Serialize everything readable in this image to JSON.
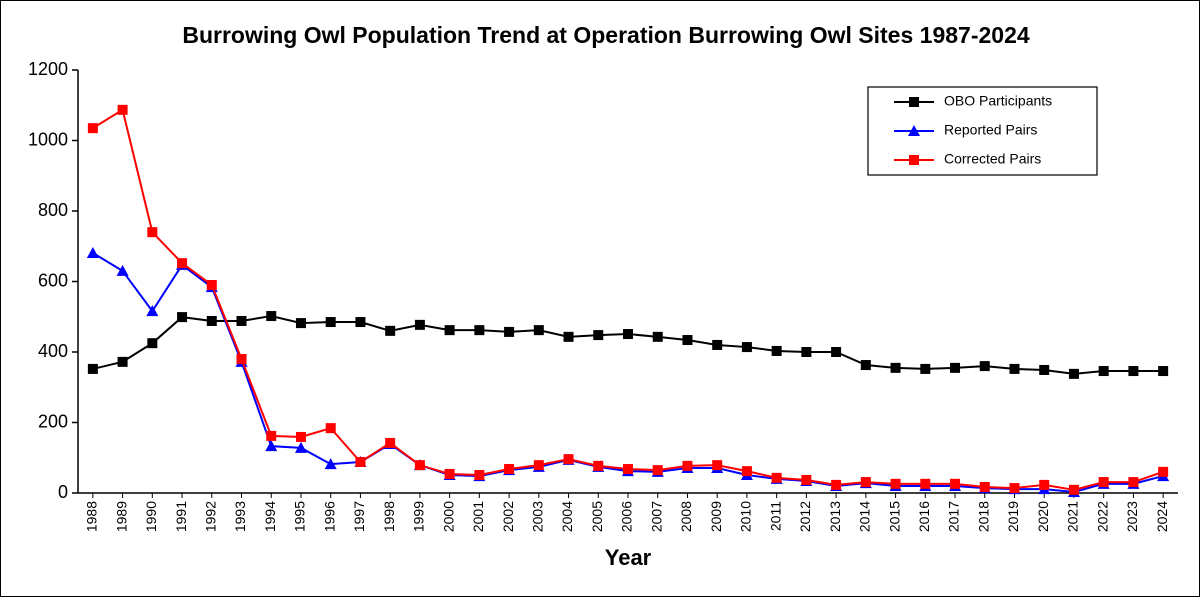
{
  "chart_data": {
    "type": "line",
    "title": "Burrowing Owl Population Trend at Operation Burrowing Owl Sites 1987-2024",
    "x_label": "Year",
    "x": [
      1988,
      1989,
      1990,
      1991,
      1992,
      1993,
      1994,
      1995,
      1996,
      1997,
      1998,
      1999,
      2000,
      2001,
      2002,
      2003,
      2004,
      2005,
      2006,
      2007,
      2008,
      2009,
      2010,
      2011,
      2012,
      2013,
      2014,
      2015,
      2016,
      2017,
      2018,
      2019,
      2020,
      2021,
      2022,
      2023,
      2024
    ],
    "xlim": [
      1987.5,
      2024.5
    ],
    "xticks": [
      1988,
      1989,
      1990,
      1991,
      1992,
      1993,
      1994,
      1995,
      1996,
      1997,
      1998,
      1999,
      2000,
      2001,
      2002,
      2003,
      2004,
      2005,
      2006,
      2007,
      2008,
      2009,
      2010,
      2011,
      2012,
      2013,
      2014,
      2015,
      2016,
      2017,
      2018,
      2019,
      2020,
      2021,
      2022,
      2023,
      2024
    ],
    "ylim": [
      0,
      1200
    ],
    "yticks": [
      0,
      200,
      400,
      600,
      800,
      1000,
      1200
    ],
    "grid": false,
    "legend_position": "upper right",
    "series": [
      {
        "name": "OBO Participants",
        "color": "#000000",
        "marker": "square",
        "values": [
          352,
          372,
          425,
          499,
          488,
          488,
          502,
          482,
          485,
          485,
          460,
          477,
          462,
          462,
          457,
          462,
          443,
          448,
          451,
          443,
          434,
          420,
          414,
          403,
          400,
          400,
          363,
          355,
          352,
          355,
          360,
          352,
          349,
          338,
          346,
          346,
          346
        ]
      },
      {
        "name": "Reported Pairs",
        "color": "#0000ff",
        "marker": "triangle",
        "values": [
          681,
          630,
          516,
          647,
          584,
          372,
          133,
          128,
          82,
          88,
          139,
          79,
          51,
          48,
          65,
          74,
          94,
          74,
          62,
          60,
          71,
          71,
          51,
          40,
          34,
          20,
          28,
          20,
          20,
          20,
          14,
          11,
          11,
          3,
          26,
          26,
          48
        ]
      },
      {
        "name": "Corrected Pairs",
        "color": "#ff0000",
        "marker": "square",
        "values": [
          1035,
          1087,
          740,
          652,
          590,
          380,
          162,
          159,
          184,
          88,
          142,
          79,
          54,
          51,
          68,
          79,
          96,
          77,
          68,
          65,
          77,
          79,
          62,
          43,
          37,
          23,
          31,
          26,
          26,
          26,
          17,
          14,
          23,
          9,
          31,
          31,
          60
        ]
      }
    ]
  }
}
